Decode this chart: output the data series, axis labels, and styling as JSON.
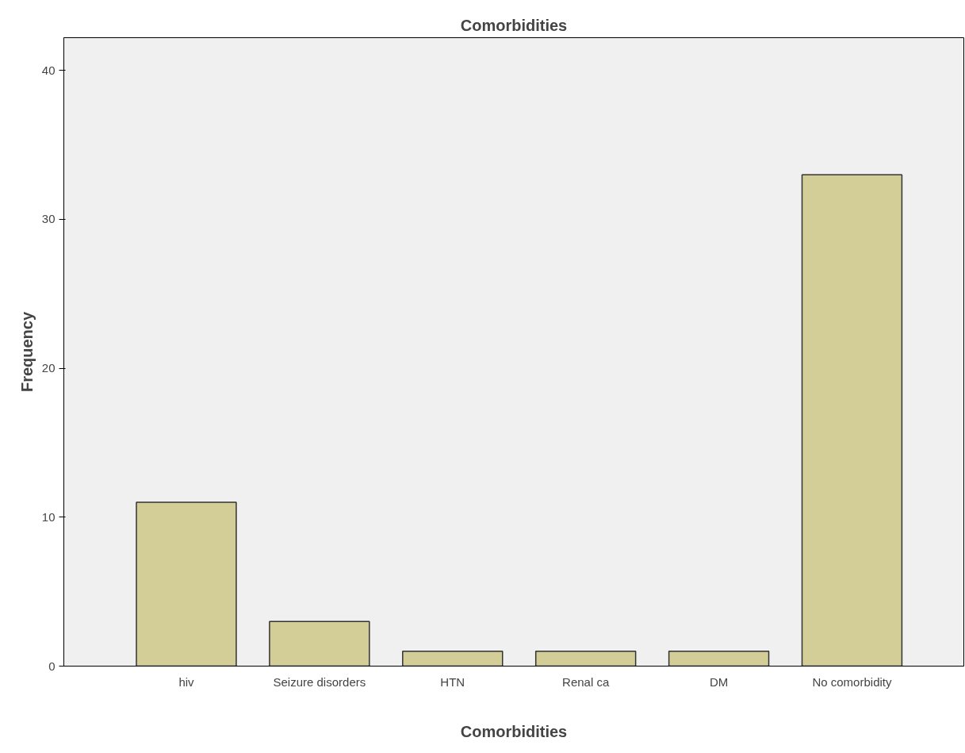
{
  "chart_data": {
    "type": "bar",
    "title": "Comorbidities",
    "xlabel": "Comorbidities",
    "ylabel": "Frequency",
    "categories": [
      "hiv",
      "Seizure disorders",
      "HTN",
      "Renal ca",
      "DM",
      "No comorbidity"
    ],
    "values": [
      11,
      3,
      1,
      1,
      1,
      33
    ],
    "color": "#d3ce97",
    "ylim": [
      0,
      42.2
    ],
    "yticks": [
      0,
      10,
      20,
      30,
      40
    ],
    "grid": false
  }
}
